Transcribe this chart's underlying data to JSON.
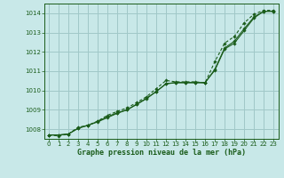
{
  "background_color": "#c8e8e8",
  "grid_color": "#a0c8c8",
  "line_color": "#1a5c1a",
  "title": "Graphe pression niveau de la mer (hPa)",
  "xlim": [
    -0.5,
    23.5
  ],
  "ylim": [
    1007.5,
    1014.5
  ],
  "yticks": [
    1008,
    1009,
    1010,
    1011,
    1012,
    1013,
    1014
  ],
  "xticks": [
    0,
    1,
    2,
    3,
    4,
    5,
    6,
    7,
    8,
    9,
    10,
    11,
    12,
    13,
    14,
    15,
    16,
    17,
    18,
    19,
    20,
    21,
    22,
    23
  ],
  "series1_x": [
    0,
    1,
    2,
    3,
    4,
    5,
    6,
    7,
    8,
    9,
    10,
    11,
    12,
    13,
    14,
    15,
    16,
    17,
    18,
    19,
    20,
    21,
    22,
    23
  ],
  "series1_y": [
    1007.7,
    1007.7,
    1007.75,
    1008.05,
    1008.2,
    1008.4,
    1008.65,
    1008.85,
    1009.0,
    1009.3,
    1009.6,
    1009.95,
    1010.35,
    1010.4,
    1010.4,
    1010.4,
    1010.4,
    1011.1,
    1012.2,
    1012.55,
    1013.2,
    1013.8,
    1014.1,
    1014.1
  ],
  "series2_x": [
    0,
    1,
    2,
    3,
    4,
    5,
    6,
    7,
    8,
    9,
    10,
    11,
    12,
    13,
    14,
    15,
    16,
    17,
    18,
    19,
    20,
    21,
    22,
    23
  ],
  "series2_y": [
    1007.7,
    1007.7,
    1007.75,
    1008.05,
    1008.2,
    1008.38,
    1008.6,
    1008.82,
    1009.0,
    1009.28,
    1009.58,
    1009.95,
    1010.35,
    1010.42,
    1010.42,
    1010.42,
    1010.42,
    1011.05,
    1012.15,
    1012.45,
    1013.1,
    1013.75,
    1014.1,
    1014.1
  ],
  "series3_x": [
    0,
    1,
    2,
    3,
    4,
    5,
    6,
    7,
    8,
    9,
    10,
    11,
    12,
    13,
    14,
    15,
    16,
    17,
    18,
    19,
    20,
    21,
    22,
    23
  ],
  "series3_y": [
    1007.7,
    1007.65,
    1007.75,
    1008.1,
    1008.2,
    1008.42,
    1008.72,
    1008.92,
    1009.1,
    1009.38,
    1009.68,
    1010.1,
    1010.52,
    1010.45,
    1010.45,
    1010.45,
    1010.4,
    1011.5,
    1012.45,
    1012.8,
    1013.5,
    1013.95,
    1014.15,
    1014.15
  ]
}
